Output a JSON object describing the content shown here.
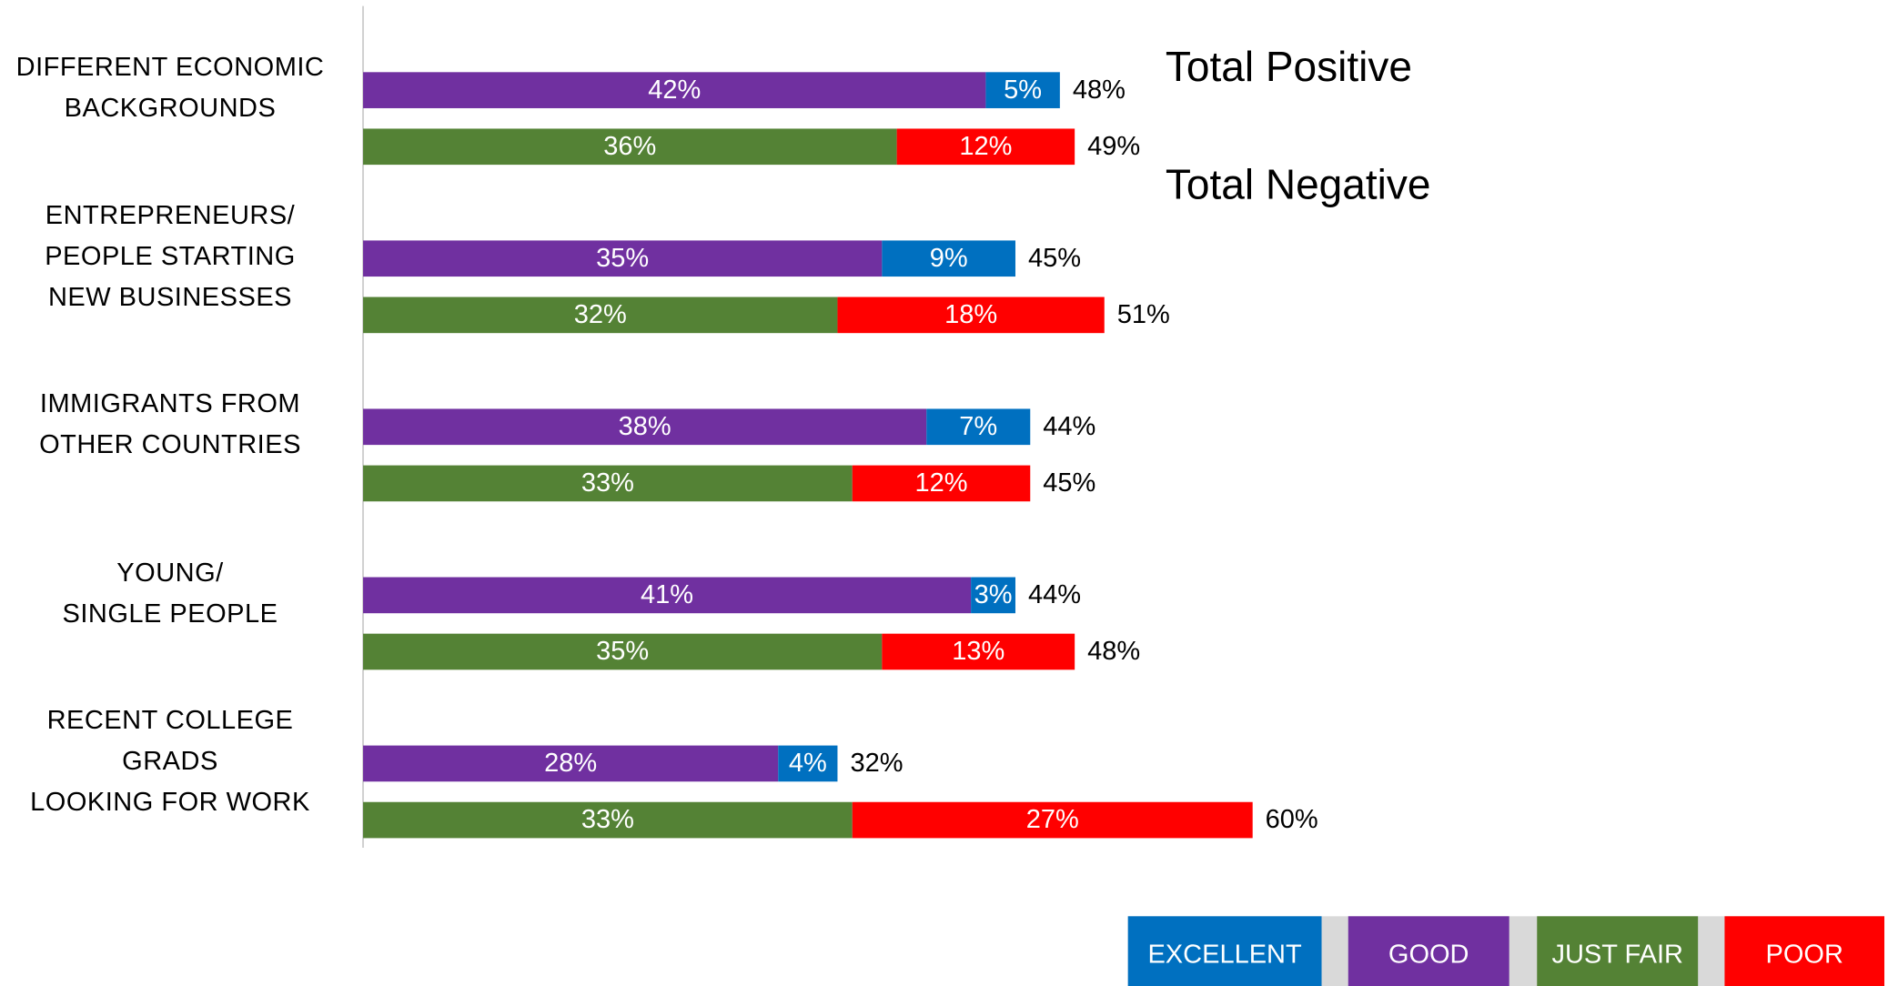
{
  "chart_data": {
    "type": "bar",
    "categories": [
      "DIFFERENT ECONOMIC\nBACKGROUNDS",
      "ENTREPRENEURS/\nPEOPLE STARTING\nNEW BUSINESSES",
      "IMMIGRANTS FROM\nOTHER COUNTRIES",
      "YOUNG/\nSINGLE PEOPLE",
      "RECENT COLLEGE\nGRADS\nLOOKING FOR WORK"
    ],
    "annotations": [
      "Total Positive",
      "Total Negative"
    ],
    "xlim": [
      0,
      100
    ],
    "series": [
      {
        "name": "GOOD",
        "color": "#7030a0",
        "group": "positive",
        "values": [
          42,
          35,
          38,
          41,
          28
        ],
        "value_labels": [
          "42%",
          "35%",
          "38%",
          "41%",
          "28%"
        ]
      },
      {
        "name": "EXCELLENT",
        "color": "#0070c0",
        "group": "positive",
        "values": [
          5,
          9,
          7,
          3,
          4
        ],
        "value_labels": [
          "5%",
          "9%",
          "7%",
          "3%",
          "4%"
        ]
      },
      {
        "name": "JUST FAIR",
        "color": "#548235",
        "group": "negative",
        "values": [
          36,
          32,
          33,
          35,
          33
        ],
        "value_labels": [
          "36%",
          "32%",
          "33%",
          "35%",
          "33%"
        ]
      },
      {
        "name": "POOR",
        "color": "#ff0000",
        "group": "negative",
        "values": [
          12,
          18,
          12,
          13,
          27
        ],
        "value_labels": [
          "12%",
          "18%",
          "12%",
          "13%",
          "27%"
        ]
      }
    ],
    "totals": {
      "positive": {
        "values": [
          48,
          45,
          44,
          44,
          32
        ],
        "value_labels": [
          "48%",
          "45%",
          "44%",
          "44%",
          "32%"
        ]
      },
      "negative": {
        "values": [
          49,
          51,
          45,
          48,
          60
        ],
        "value_labels": [
          "49%",
          "51%",
          "45%",
          "48%",
          "60%"
        ]
      }
    },
    "legend_order": [
      1,
      0,
      2,
      3
    ]
  }
}
